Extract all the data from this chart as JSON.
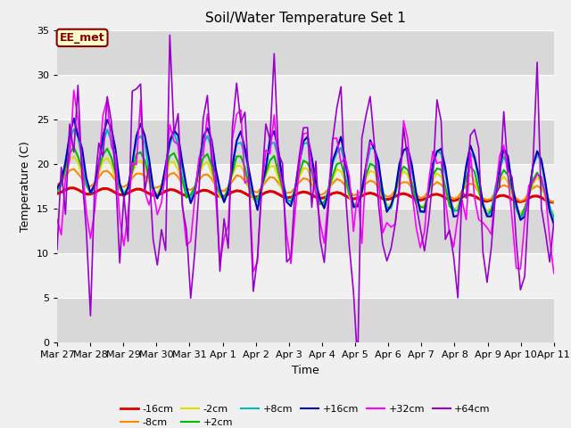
{
  "title": "Soil/Water Temperature Set 1",
  "xlabel": "Time",
  "ylabel": "Temperature (C)",
  "ylim": [
    0,
    35
  ],
  "yticks": [
    0,
    5,
    10,
    15,
    20,
    25,
    30,
    35
  ],
  "annotation_text": "EE_met",
  "annotation_bg": "#ffffcc",
  "annotation_border": "#880000",
  "series_order": [
    "-16cm",
    "-8cm",
    "-2cm",
    "+2cm",
    "+8cm",
    "+16cm",
    "+32cm",
    "+64cm"
  ],
  "series": {
    "-16cm": {
      "color": "#dd0000",
      "lw": 2.2
    },
    "-8cm": {
      "color": "#ff8800",
      "lw": 1.5
    },
    "-2cm": {
      "color": "#dddd00",
      "lw": 1.5
    },
    "+2cm": {
      "color": "#00bb00",
      "lw": 1.5
    },
    "+8cm": {
      "color": "#00bbbb",
      "lw": 1.5
    },
    "+16cm": {
      "color": "#0000bb",
      "lw": 1.5
    },
    "+32cm": {
      "color": "#ff00ff",
      "lw": 1.2
    },
    "+64cm": {
      "color": "#9900cc",
      "lw": 1.2
    }
  },
  "n_days": 15,
  "date_labels": [
    "Mar 27",
    "Mar 28",
    "Mar 29",
    "Mar 30",
    "Mar 31",
    "Apr 1",
    "Apr 2",
    "Apr 3",
    "Apr 4",
    "Apr 5",
    "Apr 6",
    "Apr 7",
    "Apr 8",
    "Apr 9",
    "Apr 10",
    "Apr 11"
  ]
}
